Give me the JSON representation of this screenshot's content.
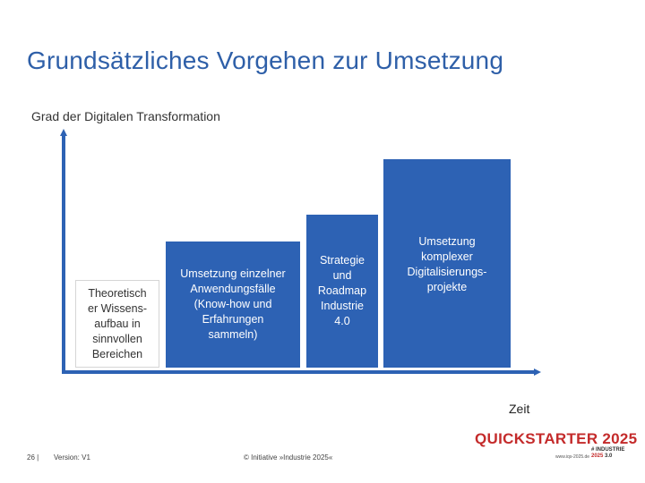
{
  "slide": {
    "title": "Grundsätzliches Vorgehen zur Umsetzung",
    "y_axis_label": "Grad der Digitalen Transformation",
    "x_axis_label": "Zeit"
  },
  "stages": [
    {
      "label": "Theoretisch\ner Wissens-\naufbau in\nsinnvollen\nBereichen",
      "style": "light"
    },
    {
      "label": "Umsetzung einzelner\nAnwendungsfälle\n(Know-how und\nErfahrungen\nsammeln)",
      "style": "dark"
    },
    {
      "label": "Strategie\nund\nRoadmap\nIndustrie\n4.0",
      "style": "dark"
    },
    {
      "label": "Umsetzung\nkomplexer\nDigitalisierungs-\nprojekte",
      "style": "dark"
    }
  ],
  "footer": {
    "page": "26 |",
    "version": "Version: V1",
    "copyright": "© Initiative »Industrie 2025«"
  },
  "logo": {
    "wordmark": "QUICKSTARTER 2025",
    "url_small": "www.iqs-2025.de",
    "brand_line1": "# INDUSTRIE",
    "brand_line2": "2025",
    "brand_line2_suffix": "3.0"
  },
  "colors": {
    "title": "#2e5fa8",
    "box": "#2d62b4",
    "axis": "#2d62b4",
    "logo": "#c42b2b"
  }
}
